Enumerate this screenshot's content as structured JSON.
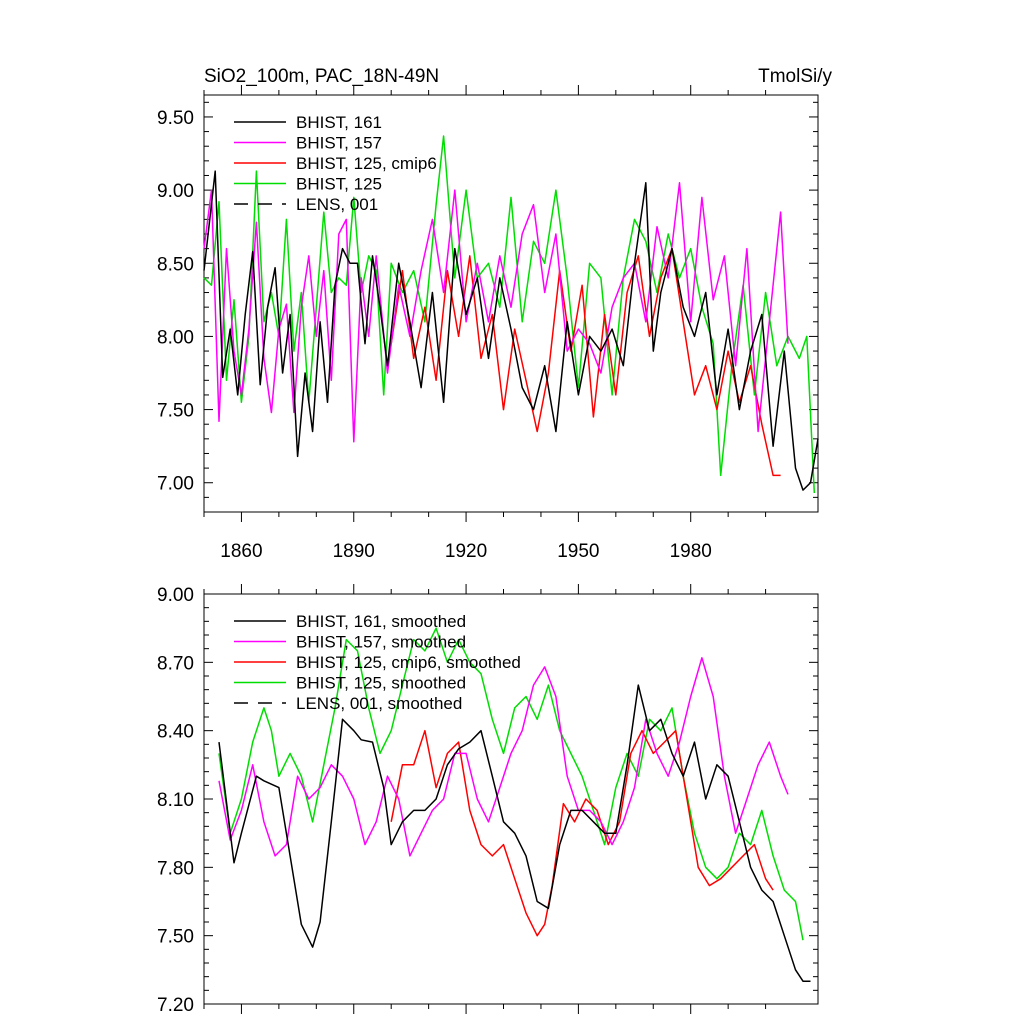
{
  "chart_data": [
    {
      "type": "line",
      "title_left": "SiO2_100m, PAC_18N-49N",
      "title_right": "TmolSi/y",
      "xlim": [
        1850,
        2014
      ],
      "ylim": [
        6.8,
        9.65
      ],
      "yticks": [
        7.0,
        7.5,
        8.0,
        8.5,
        9.0,
        9.5
      ],
      "ytick_labels": [
        "7.00",
        "7.50",
        "8.00",
        "8.50",
        "9.00",
        "9.50"
      ],
      "xticks": [
        1860,
        1890,
        1920,
        1950,
        1980
      ],
      "xtick_labels": [
        "1860",
        "1890",
        "1920",
        "1950",
        "1980"
      ],
      "show_xtick_labels": true,
      "legend_position": "top-left",
      "series": [
        {
          "name": "BHIST, 161",
          "color": "#000000",
          "dash": "solid",
          "x": [
            1850,
            1853,
            1855,
            1857,
            1859,
            1861,
            1863,
            1865,
            1867,
            1869,
            1871,
            1873,
            1875,
            1877,
            1879,
            1881,
            1883,
            1885,
            1887,
            1889,
            1891,
            1893,
            1895,
            1897,
            1899,
            1902,
            1905,
            1908,
            1911,
            1914,
            1917,
            1920,
            1923,
            1926,
            1929,
            1932,
            1935,
            1938,
            1941,
            1944,
            1947,
            1950,
            1953,
            1956,
            1959,
            1962,
            1965,
            1968,
            1970,
            1972,
            1975,
            1978,
            1981,
            1984,
            1987,
            1990,
            1993,
            1996,
            1999,
            2002,
            2005,
            2008,
            2010,
            2012,
            2014
          ],
          "y": [
            8.45,
            9.13,
            7.72,
            8.05,
            7.6,
            8.15,
            8.58,
            7.67,
            8.2,
            8.47,
            7.75,
            8.15,
            7.18,
            7.75,
            7.35,
            8.1,
            7.55,
            8.35,
            8.6,
            8.5,
            8.5,
            7.95,
            8.55,
            8.2,
            7.8,
            8.5,
            8.1,
            7.65,
            8.3,
            7.55,
            8.6,
            8.15,
            8.4,
            7.85,
            8.4,
            8.05,
            7.65,
            7.5,
            7.8,
            7.35,
            8.1,
            7.6,
            8.0,
            7.9,
            8.05,
            7.8,
            8.5,
            9.05,
            7.9,
            8.3,
            8.6,
            8.2,
            8.0,
            8.3,
            7.6,
            8.05,
            7.5,
            7.9,
            8.15,
            7.25,
            7.9,
            7.1,
            6.95,
            7.0,
            7.3
          ]
        },
        {
          "name": "BHIST, 157",
          "color": "#ff00ff",
          "dash": "solid",
          "x": [
            1850,
            1852,
            1854,
            1856,
            1858,
            1860,
            1862,
            1864,
            1866,
            1868,
            1870,
            1872,
            1874,
            1876,
            1878,
            1880,
            1882,
            1884,
            1886,
            1888,
            1890,
            1892,
            1894,
            1896,
            1899,
            1902,
            1905,
            1908,
            1911,
            1914,
            1917,
            1920,
            1923,
            1926,
            1929,
            1932,
            1935,
            1938,
            1941,
            1944,
            1947,
            1950,
            1953,
            1956,
            1959,
            1962,
            1965,
            1968,
            1971,
            1974,
            1977,
            1980,
            1983,
            1986,
            1989,
            1992,
            1995,
            1998,
            2001,
            2004,
            2006
          ],
          "y": [
            8.6,
            9.0,
            7.42,
            8.6,
            7.9,
            7.6,
            8.05,
            8.78,
            7.85,
            7.48,
            8.05,
            8.22,
            7.48,
            8.2,
            8.55,
            8.0,
            8.45,
            7.7,
            8.7,
            8.8,
            7.28,
            8.4,
            8.0,
            8.55,
            7.75,
            8.35,
            8.0,
            8.45,
            8.8,
            8.3,
            9.0,
            8.1,
            8.5,
            8.1,
            8.55,
            8.2,
            8.7,
            8.9,
            8.3,
            8.7,
            7.9,
            8.05,
            7.95,
            7.75,
            8.2,
            8.4,
            8.5,
            8.1,
            8.75,
            8.4,
            9.05,
            8.1,
            8.95,
            8.25,
            8.55,
            7.8,
            8.6,
            7.35,
            8.1,
            8.85,
            7.95
          ]
        },
        {
          "name": "BHIST, 125, cmip6",
          "color": "#ff0000",
          "dash": "solid",
          "x": [
            1900,
            1903,
            1906,
            1909,
            1912,
            1915,
            1918,
            1921,
            1924,
            1927,
            1930,
            1933,
            1936,
            1939,
            1942,
            1945,
            1948,
            1951,
            1954,
            1957,
            1960,
            1963,
            1966,
            1969,
            1972,
            1975,
            1978,
            1981,
            1984,
            1987,
            1990,
            1993,
            1996,
            1999,
            2002,
            2004
          ],
          "y": [
            7.95,
            8.45,
            7.85,
            8.2,
            7.7,
            8.45,
            8.0,
            8.55,
            7.85,
            8.15,
            7.5,
            8.05,
            7.7,
            7.35,
            7.75,
            8.45,
            7.9,
            8.35,
            7.45,
            8.15,
            7.6,
            8.3,
            8.55,
            8.0,
            8.4,
            8.6,
            8.1,
            7.6,
            7.8,
            7.5,
            7.9,
            7.55,
            7.8,
            7.4,
            7.05,
            7.05
          ]
        },
        {
          "name": "BHIST, 125",
          "color": "#00dd00",
          "dash": "solid",
          "x": [
            1850,
            1852,
            1854,
            1856,
            1858,
            1860,
            1862,
            1864,
            1866,
            1868,
            1870,
            1872,
            1874,
            1876,
            1878,
            1880,
            1882,
            1884,
            1886,
            1888,
            1890,
            1892,
            1894,
            1896,
            1898,
            1900,
            1903,
            1906,
            1909,
            1912,
            1914,
            1917,
            1920,
            1923,
            1926,
            1929,
            1932,
            1935,
            1938,
            1941,
            1944,
            1947,
            1950,
            1953,
            1956,
            1959,
            1962,
            1965,
            1968,
            1971,
            1974,
            1977,
            1980,
            1983,
            1986,
            1988,
            1991,
            1994,
            1997,
            2000,
            2003,
            2006,
            2009,
            2011,
            2013
          ],
          "y": [
            8.4,
            8.35,
            8.92,
            7.7,
            8.25,
            7.55,
            8.0,
            9.13,
            8.1,
            8.3,
            8.0,
            8.8,
            7.9,
            8.3,
            7.55,
            8.2,
            8.85,
            8.3,
            8.4,
            8.35,
            8.95,
            8.3,
            8.55,
            8.45,
            7.6,
            8.5,
            8.3,
            8.45,
            8.1,
            8.9,
            9.37,
            8.4,
            9.0,
            8.4,
            8.5,
            8.2,
            8.95,
            8.1,
            8.65,
            8.5,
            9.0,
            8.4,
            7.65,
            8.5,
            8.4,
            7.6,
            8.4,
            8.8,
            8.65,
            8.3,
            8.7,
            8.4,
            8.6,
            8.2,
            7.95,
            7.05,
            7.8,
            8.35,
            7.6,
            8.3,
            7.8,
            8.0,
            7.85,
            8.0,
            6.93
          ]
        },
        {
          "name": "LENS, 001",
          "color": "#000000",
          "dash": "dashed",
          "x": [],
          "y": []
        }
      ]
    },
    {
      "type": "line",
      "title_left": "",
      "title_right": "",
      "xlim": [
        1850,
        2014
      ],
      "ylim": [
        7.2,
        9.0
      ],
      "yticks": [
        7.2,
        7.5,
        7.8,
        8.1,
        8.4,
        8.7,
        9.0
      ],
      "ytick_labels": [
        "7.20",
        "7.50",
        "7.80",
        "8.10",
        "8.40",
        "8.70",
        "9.00"
      ],
      "xticks": [
        1860,
        1890,
        1920,
        1950,
        1980
      ],
      "xtick_labels": [],
      "show_xtick_labels": false,
      "legend_position": "top-left",
      "series": [
        {
          "name": "BHIST, 161, smoothed",
          "color": "#000000",
          "dash": "solid",
          "x": [
            1854,
            1858,
            1860,
            1864,
            1866,
            1870,
            1873,
            1876,
            1879,
            1881,
            1884,
            1887,
            1890,
            1892,
            1895,
            1898,
            1900,
            1903,
            1906,
            1909,
            1912,
            1915,
            1918,
            1921,
            1924,
            1927,
            1930,
            1933,
            1936,
            1939,
            1942,
            1945,
            1948,
            1951,
            1954,
            1957,
            1960,
            1963,
            1966,
            1969,
            1972,
            1975,
            1978,
            1981,
            1984,
            1987,
            1990,
            1993,
            1996,
            1999,
            2002,
            2005,
            2008,
            2010,
            2012
          ],
          "y": [
            8.35,
            7.82,
            7.95,
            8.2,
            8.18,
            8.15,
            7.85,
            7.55,
            7.45,
            7.56,
            8.0,
            8.45,
            8.4,
            8.36,
            8.35,
            8.15,
            7.9,
            8.0,
            8.05,
            8.05,
            8.1,
            8.25,
            8.32,
            8.35,
            8.4,
            8.2,
            8.0,
            7.95,
            7.85,
            7.65,
            7.62,
            7.9,
            8.05,
            8.05,
            8.0,
            7.95,
            7.95,
            8.25,
            8.6,
            8.4,
            8.45,
            8.3,
            8.2,
            8.35,
            8.1,
            8.25,
            8.2,
            8.0,
            7.8,
            7.7,
            7.65,
            7.5,
            7.35,
            7.3,
            7.3
          ]
        },
        {
          "name": "BHIST, 157, smoothed",
          "color": "#ff00ff",
          "dash": "solid",
          "x": [
            1854,
            1857,
            1860,
            1863,
            1866,
            1869,
            1872,
            1875,
            1878,
            1881,
            1884,
            1887,
            1890,
            1893,
            1896,
            1899,
            1902,
            1905,
            1908,
            1911,
            1914,
            1917,
            1920,
            1923,
            1926,
            1929,
            1932,
            1935,
            1938,
            1941,
            1944,
            1947,
            1950,
            1953,
            1956,
            1959,
            1962,
            1965,
            1968,
            1971,
            1974,
            1977,
            1980,
            1983,
            1986,
            1989,
            1992,
            1995,
            1998,
            2001,
            2004,
            2006
          ],
          "y": [
            8.18,
            7.92,
            8.05,
            8.25,
            8.0,
            7.85,
            7.9,
            8.2,
            8.1,
            8.15,
            8.25,
            8.2,
            8.1,
            7.9,
            8.0,
            8.2,
            8.1,
            7.85,
            7.95,
            8.05,
            8.1,
            8.3,
            8.3,
            8.1,
            8.0,
            8.15,
            8.3,
            8.4,
            8.6,
            8.68,
            8.55,
            8.2,
            8.05,
            8.05,
            8.0,
            7.9,
            8.0,
            8.15,
            8.45,
            8.3,
            8.2,
            8.35,
            8.55,
            8.72,
            8.55,
            8.2,
            7.95,
            8.1,
            8.25,
            8.35,
            8.2,
            8.12
          ]
        },
        {
          "name": "BHIST, 125, cmip6, smoothed",
          "color": "#ff0000",
          "dash": "solid",
          "x": [
            1900,
            1903,
            1906,
            1909,
            1912,
            1915,
            1918,
            1921,
            1924,
            1927,
            1930,
            1933,
            1936,
            1939,
            1941,
            1943,
            1946,
            1949,
            1952,
            1955,
            1958,
            1961,
            1964,
            1967,
            1970,
            1973,
            1976,
            1979,
            1982,
            1985,
            1988,
            1991,
            1994,
            1997,
            2000,
            2002
          ],
          "y": [
            8.0,
            8.25,
            8.25,
            8.4,
            8.15,
            8.3,
            8.35,
            8.05,
            7.9,
            7.85,
            7.9,
            7.75,
            7.6,
            7.5,
            7.55,
            7.72,
            8.08,
            8.0,
            8.1,
            8.05,
            7.9,
            8.0,
            8.3,
            8.4,
            8.3,
            8.35,
            8.4,
            8.1,
            7.8,
            7.72,
            7.75,
            7.8,
            7.85,
            7.9,
            7.75,
            7.7
          ]
        },
        {
          "name": "BHIST, 125, smoothed",
          "color": "#00dd00",
          "dash": "solid",
          "x": [
            1854,
            1857,
            1860,
            1863,
            1866,
            1868,
            1870,
            1873,
            1876,
            1879,
            1882,
            1885,
            1888,
            1891,
            1894,
            1897,
            1900,
            1903,
            1906,
            1909,
            1912,
            1915,
            1918,
            1921,
            1924,
            1927,
            1930,
            1933,
            1936,
            1939,
            1942,
            1945,
            1948,
            1951,
            1954,
            1957,
            1960,
            1963,
            1966,
            1969,
            1972,
            1975,
            1978,
            1981,
            1984,
            1987,
            1990,
            1993,
            1996,
            1999,
            2002,
            2005,
            2008,
            2010
          ],
          "y": [
            8.3,
            7.95,
            8.1,
            8.35,
            8.5,
            8.4,
            8.2,
            8.3,
            8.2,
            8.0,
            8.25,
            8.5,
            8.8,
            8.75,
            8.5,
            8.3,
            8.4,
            8.6,
            8.8,
            8.75,
            8.85,
            8.7,
            8.8,
            8.7,
            8.65,
            8.45,
            8.3,
            8.5,
            8.55,
            8.45,
            8.6,
            8.4,
            8.3,
            8.2,
            8.05,
            7.9,
            8.15,
            8.3,
            8.2,
            8.45,
            8.4,
            8.5,
            8.2,
            7.95,
            7.8,
            7.75,
            7.8,
            7.95,
            7.9,
            8.05,
            7.85,
            7.7,
            7.65,
            7.48
          ]
        },
        {
          "name": "LENS, 001, smoothed",
          "color": "#000000",
          "dash": "dashed",
          "x": [],
          "y": []
        }
      ]
    }
  ]
}
